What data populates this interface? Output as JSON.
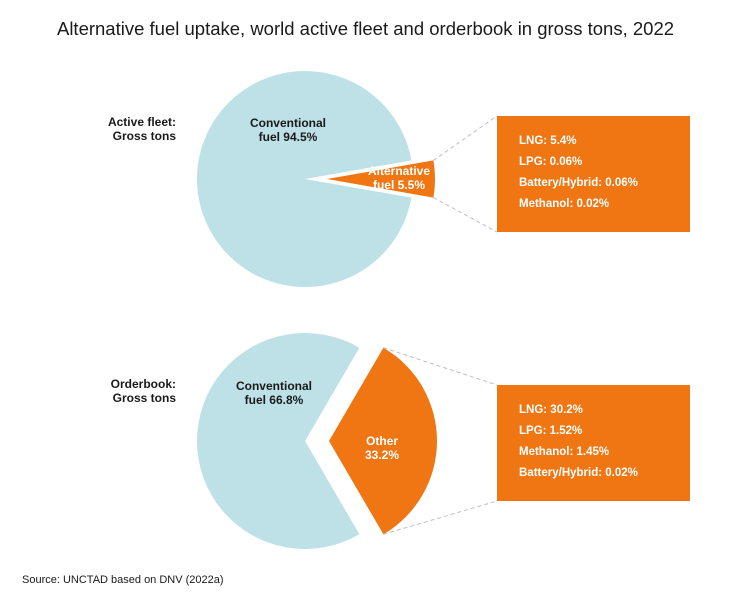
{
  "title": "Alternative fuel uptake, world active fleet and orderbook in gross tons, 2022",
  "source": "Source: UNCTAD based on DNV (2022a)",
  "colors": {
    "conventional": "#bde1e7",
    "alternative": "#ef7613",
    "connector": "#bfbfbf",
    "text": "#1a1a1a",
    "box_text": "#ffffff"
  },
  "chart_data": [
    {
      "type": "pie",
      "row_label": [
        "Active fleet:",
        "Gross tons"
      ],
      "slices": [
        {
          "name": "Conventional fuel",
          "value": 94.5,
          "label": [
            "Conventional",
            "fuel 94.5%"
          ]
        },
        {
          "name": "Alternative fuel",
          "value": 5.5,
          "label": [
            "Alternative",
            "fuel 5.5%"
          ],
          "exploded": true
        }
      ],
      "breakdown": [
        {
          "label": "LNG: 5.4%",
          "value": 5.4
        },
        {
          "label": "LPG: 0.06%",
          "value": 0.06
        },
        {
          "label": "Battery/Hybrid: 0.06%",
          "value": 0.06
        },
        {
          "label": "Methanol: 0.02%",
          "value": 0.02
        }
      ]
    },
    {
      "type": "pie",
      "row_label": [
        "Orderbook:",
        "Gross tons"
      ],
      "slices": [
        {
          "name": "Conventional fuel",
          "value": 66.8,
          "label": [
            "Conventional",
            "fuel 66.8%"
          ]
        },
        {
          "name": "Other",
          "value": 33.2,
          "label": [
            "Other",
            "33.2%"
          ],
          "exploded": true
        }
      ],
      "breakdown": [
        {
          "label": "LNG: 30.2%",
          "value": 30.2
        },
        {
          "label": "LPG: 1.52%",
          "value": 1.52
        },
        {
          "label": "Methanol: 1.45%",
          "value": 1.45
        },
        {
          "label": "Battery/Hybrid: 0.02%",
          "value": 0.02
        }
      ]
    }
  ]
}
